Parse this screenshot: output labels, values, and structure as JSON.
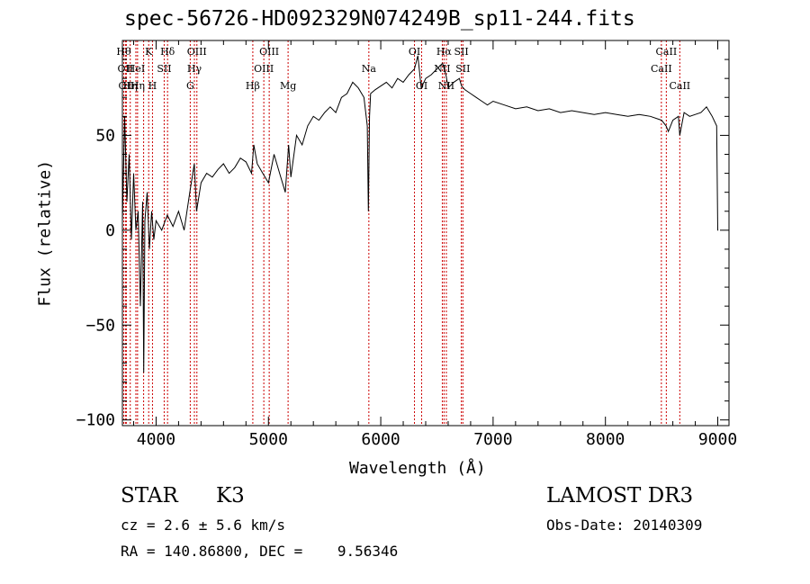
{
  "chart_data": {
    "type": "line",
    "title": "spec-56726-HD092329N074249B_sp11-244.fits",
    "xlabel": "Wavelength (Å)",
    "ylabel": "Flux (relative)",
    "xlim": [
      3700,
      9100
    ],
    "ylim": [
      -103,
      100
    ],
    "xticks": [
      4000,
      5000,
      6000,
      7000,
      8000,
      9000
    ],
    "xtick_labels": [
      "4000",
      "5000",
      "6000",
      "7000",
      "8000",
      "9000"
    ],
    "yticks": [
      -100,
      -50,
      0,
      50
    ],
    "ytick_labels": [
      "−100",
      "−50",
      "0",
      "50"
    ],
    "grid": false,
    "series": [
      {
        "x": [
          3700,
          3720,
          3740,
          3760,
          3780,
          3800,
          3820,
          3840,
          3860,
          3880,
          3890,
          3900,
          3920,
          3940,
          3960,
          3980,
          4000,
          4050,
          4100,
          4150,
          4200,
          4250,
          4300,
          4340,
          4360,
          4400,
          4450,
          4500,
          4550,
          4600,
          4650,
          4700,
          4750,
          4800,
          4850,
          4870,
          4900,
          4950,
          5000,
          5050,
          5100,
          5150,
          5180,
          5200,
          5250,
          5300,
          5350,
          5400,
          5450,
          5500,
          5550,
          5600,
          5650,
          5700,
          5750,
          5800,
          5850,
          5880,
          5890,
          5900,
          5910,
          5950,
          6000,
          6050,
          6100,
          6150,
          6200,
          6250,
          6300,
          6330,
          6360,
          6400,
          6450,
          6500,
          6550,
          6580,
          6600,
          6650,
          6700,
          6720,
          6750,
          6800,
          6850,
          6900,
          6950,
          7000,
          7100,
          7200,
          7300,
          7400,
          7500,
          7600,
          7700,
          7800,
          7900,
          8000,
          8100,
          8200,
          8300,
          8400,
          8500,
          8540,
          8560,
          8600,
          8650,
          8662,
          8700,
          8750,
          8800,
          8850,
          8900,
          8950,
          8990,
          9000,
          9005
        ],
        "y": [
          5,
          60,
          15,
          40,
          -5,
          30,
          0,
          10,
          -40,
          15,
          -75,
          5,
          20,
          -10,
          10,
          -5,
          5,
          0,
          8,
          2,
          10,
          0,
          20,
          35,
          10,
          25,
          30,
          28,
          32,
          35,
          30,
          33,
          38,
          36,
          30,
          45,
          35,
          30,
          25,
          40,
          30,
          20,
          45,
          28,
          50,
          45,
          55,
          60,
          58,
          62,
          65,
          62,
          70,
          72,
          78,
          75,
          70,
          55,
          10,
          60,
          72,
          74,
          76,
          78,
          75,
          80,
          78,
          82,
          85,
          92,
          75,
          80,
          82,
          85,
          88,
          82,
          75,
          78,
          80,
          76,
          74,
          72,
          70,
          68,
          66,
          68,
          66,
          64,
          65,
          63,
          64,
          62,
          63,
          62,
          61,
          62,
          61,
          60,
          61,
          60,
          58,
          55,
          52,
          58,
          60,
          50,
          62,
          60,
          61,
          62,
          65,
          60,
          55,
          0,
          0
        ]
      }
    ],
    "lines": [
      {
        "wl": 3712,
        "labels": [
          "Hθ"
        ],
        "tier": 0
      },
      {
        "wl": 3727,
        "labels": [
          "OII"
        ],
        "tier": 1
      },
      {
        "wl": 3735,
        "labels": [
          "OII"
        ],
        "tier": 2
      },
      {
        "wl": 3770,
        "labels": [
          "Hη"
        ],
        "tier": 2
      },
      {
        "wl": 3820,
        "labels": [
          "HeI"
        ],
        "tier": 1
      },
      {
        "wl": 3835,
        "labels": [
          "Hη"
        ],
        "tier": 2
      },
      {
        "wl": 3889,
        "labels": [],
        "tier": 0
      },
      {
        "wl": 3934,
        "labels": [
          "K"
        ],
        "tier": 0
      },
      {
        "wl": 3968,
        "labels": [
          "H"
        ],
        "tier": 2
      },
      {
        "wl": 4072,
        "labels": [
          "SII"
        ],
        "tier": 1
      },
      {
        "wl": 4102,
        "labels": [
          "Hδ"
        ],
        "tier": 0
      },
      {
        "wl": 4304,
        "labels": [
          "G"
        ],
        "tier": 2
      },
      {
        "wl": 4341,
        "labels": [
          "Hγ"
        ],
        "tier": 1
      },
      {
        "wl": 4363,
        "labels": [
          "OIII"
        ],
        "tier": 0
      },
      {
        "wl": 4861,
        "labels": [
          "Hβ"
        ],
        "tier": 2
      },
      {
        "wl": 4959,
        "labels": [
          "OIII"
        ],
        "tier": 1
      },
      {
        "wl": 5007,
        "labels": [
          "OIII"
        ],
        "tier": 0
      },
      {
        "wl": 5175,
        "labels": [
          "Mg"
        ],
        "tier": 2
      },
      {
        "wl": 5894,
        "labels": [
          "Na"
        ],
        "tier": 1
      },
      {
        "wl": 6300,
        "labels": [
          "OI"
        ],
        "tier": 0
      },
      {
        "wl": 6364,
        "labels": [
          "OI"
        ],
        "tier": 2
      },
      {
        "wl": 6548,
        "labels": [
          "NII"
        ],
        "tier": 1
      },
      {
        "wl": 6563,
        "labels": [
          "Hα"
        ],
        "tier": 0
      },
      {
        "wl": 6584,
        "labels": [
          "NII"
        ],
        "tier": 2
      },
      {
        "wl": 6717,
        "labels": [
          "SII"
        ],
        "tier": 0
      },
      {
        "wl": 6731,
        "labels": [
          "SII"
        ],
        "tier": 1
      },
      {
        "wl": 8498,
        "labels": [
          "CaII"
        ],
        "tier": 1
      },
      {
        "wl": 8542,
        "labels": [
          "CaII"
        ],
        "tier": 0
      },
      {
        "wl": 8662,
        "labels": [
          "CaII"
        ],
        "tier": 2
      }
    ]
  },
  "info": {
    "object_type": "STAR",
    "subclass": "K3",
    "survey": "LAMOST DR3",
    "cz": "cz = 2.6 ± 5.6 km/s",
    "obs_date": "Obs-Date: 20140309",
    "coords": "RA = 140.86800, DEC =    9.56346"
  },
  "colors": {
    "line_marker": "#cc0000",
    "spectrum": "#000000",
    "axes": "#000000"
  }
}
